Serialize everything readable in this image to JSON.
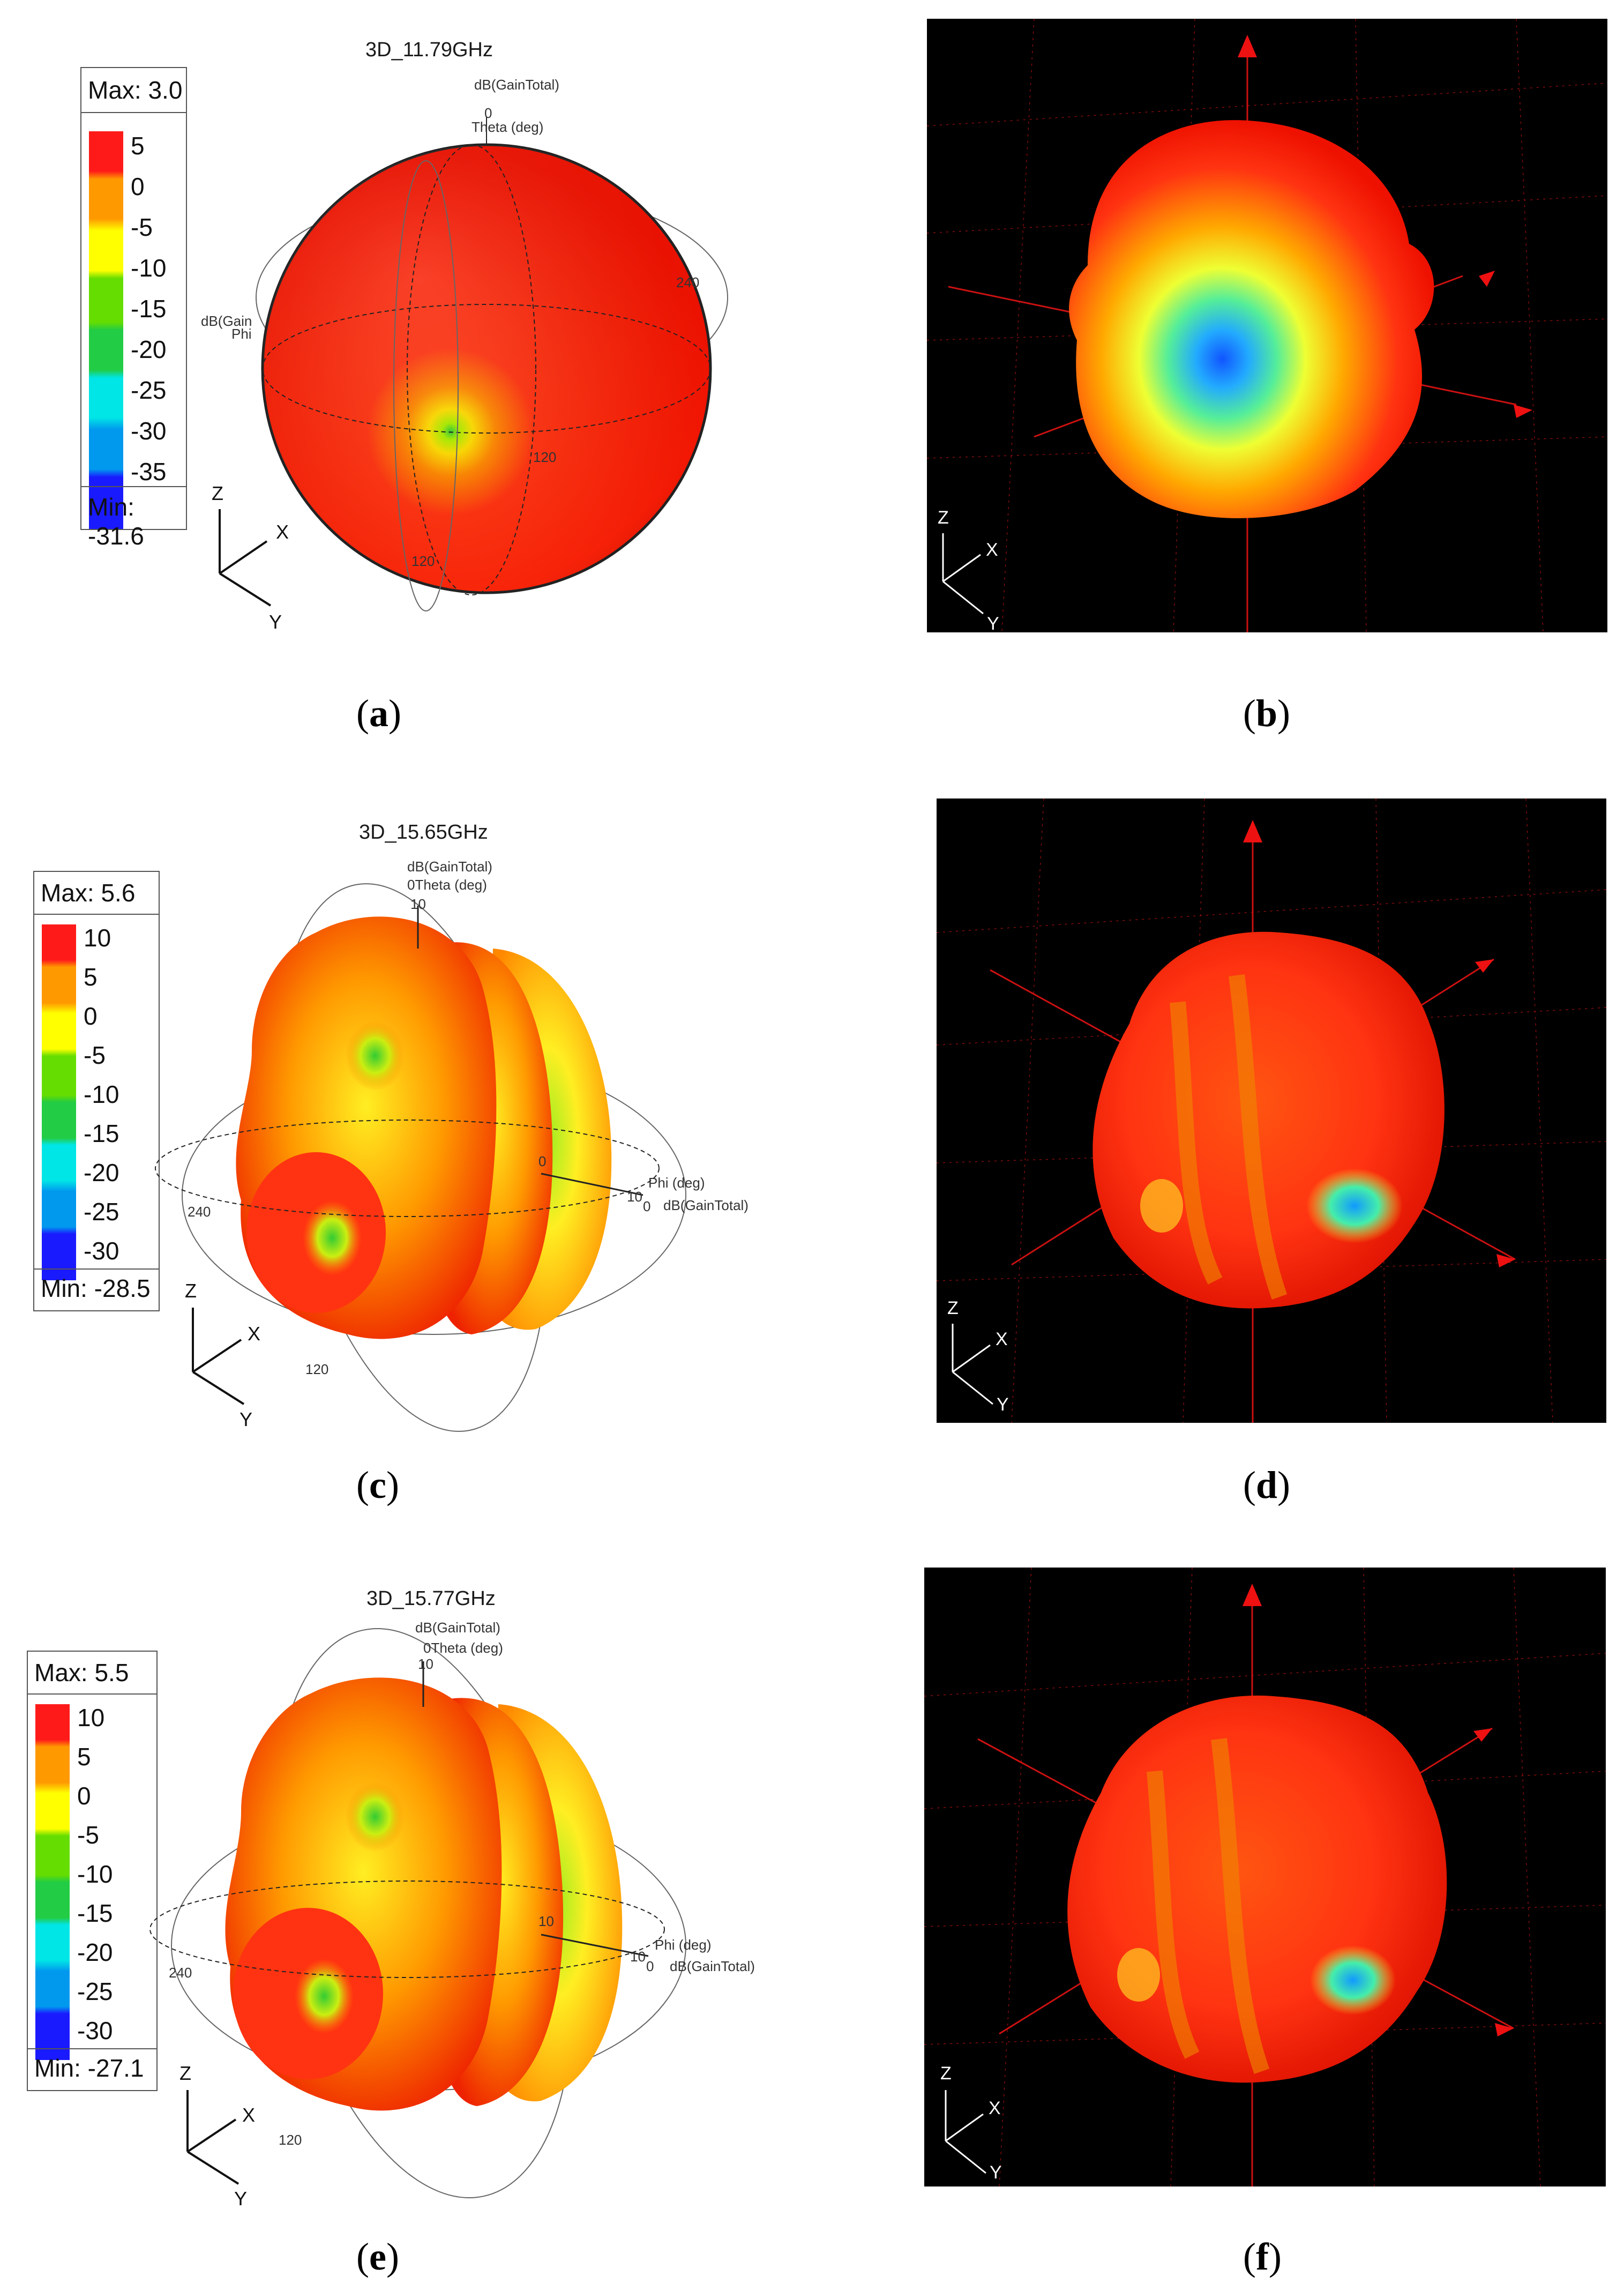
{
  "panels": [
    {
      "id": "a",
      "title": "3D_11.79GHz",
      "legend": {
        "max": "Max: 3.0",
        "min": "Min: -31.6",
        "ticks": [
          "5",
          "0",
          "-5",
          "-10",
          "-15",
          "-20",
          "-25",
          "-30",
          "-35"
        ]
      },
      "annotations": {
        "gain_top": "dB(GainTotal)",
        "theta": "Theta (deg)",
        "theta0": "0",
        "phi_left": "dB(Gain",
        "phi_left2": "Phi",
        "t240": "240",
        "t120a": "120",
        "t120b": "120"
      },
      "axes": {
        "z": "Z",
        "x": "X",
        "y": "Y"
      }
    },
    {
      "id": "c",
      "title": "3D_15.65GHz",
      "legend": {
        "max": "Max: 5.6",
        "min": "Min: -28.5",
        "ticks": [
          "10",
          "5",
          "0",
          "-5",
          "-10",
          "-15",
          "-20",
          "-25",
          "-30"
        ]
      },
      "annotations": {
        "gain_top": "dB(GainTotal)",
        "theta": "0Theta (deg)",
        "ten_top": "10",
        "phi": "Phi (deg)",
        "gain_right": "dB(GainTotal)",
        "ten_right": "10",
        "zero_right": "0",
        "zero_mid": "0",
        "t240": "240",
        "t120": "120"
      },
      "axes": {
        "z": "Z",
        "x": "X",
        "y": "Y"
      }
    },
    {
      "id": "e",
      "title": "3D_15.77GHz",
      "legend": {
        "max": "Max: 5.5",
        "min": "Min: -27.1",
        "ticks": [
          "10",
          "5",
          "0",
          "-5",
          "-10",
          "-15",
          "-20",
          "-25",
          "-30"
        ]
      },
      "annotations": {
        "gain_top": "dB(GainTotal)",
        "theta": "0Theta (deg)",
        "ten_top": "10",
        "phi": "Phi (deg)",
        "gain_right": "dB(GainTotal)",
        "ten_right": "10",
        "ten_mid": "10",
        "zero_right": "0",
        "t240": "240",
        "t120": "120"
      },
      "axes": {
        "z": "Z",
        "x": "X",
        "y": "Y"
      }
    }
  ],
  "measured": [
    {
      "id": "b",
      "axes": {
        "z": "Z",
        "x": "X",
        "y": "Y"
      }
    },
    {
      "id": "d",
      "axes": {
        "z": "Z",
        "x": "X",
        "y": "Y"
      }
    },
    {
      "id": "f",
      "axes": {
        "z": "Z",
        "x": "X",
        "y": "Y"
      }
    }
  ],
  "captions": {
    "a": "a",
    "b": "b",
    "c": "c",
    "d": "d",
    "e": "e",
    "f": "f"
  }
}
